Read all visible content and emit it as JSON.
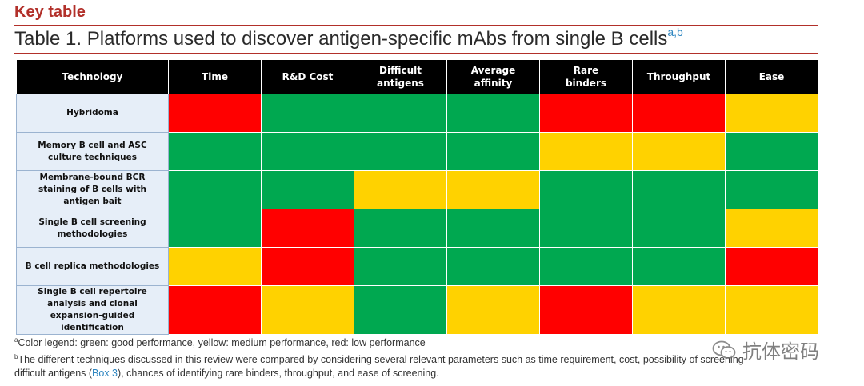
{
  "header": {
    "key_label": "Key table",
    "title": "Table 1. Platforms used to discover antigen-specific mAbs from single B cells",
    "title_superscript": "a,b"
  },
  "table": {
    "columns": [
      "Technology",
      "Time",
      "R&D Cost",
      "Difficult antigens",
      "Average affinity",
      "Rare binders",
      "Throughput",
      "Ease"
    ],
    "rows": [
      {
        "technology": "Hybridoma",
        "ratings": [
          "red",
          "green",
          "green",
          "green",
          "red",
          "red",
          "yellow"
        ]
      },
      {
        "technology": "Memory B cell and ASC culture techniques",
        "ratings": [
          "green",
          "green",
          "green",
          "green",
          "yellow",
          "yellow",
          "green"
        ]
      },
      {
        "technology": "Membrane-bound BCR staining of B cells with antigen bait",
        "ratings": [
          "green",
          "green",
          "yellow",
          "yellow",
          "green",
          "green",
          "green"
        ]
      },
      {
        "technology": "Single B cell screening methodologies",
        "ratings": [
          "green",
          "red",
          "green",
          "green",
          "green",
          "green",
          "yellow"
        ]
      },
      {
        "technology": "B cell replica methodologies",
        "ratings": [
          "yellow",
          "red",
          "green",
          "green",
          "green",
          "green",
          "red"
        ]
      },
      {
        "technology": "Single B cell repertoire analysis and clonal expansion-guided identification",
        "ratings": [
          "red",
          "yellow",
          "green",
          "yellow",
          "red",
          "yellow",
          "yellow"
        ]
      }
    ],
    "colors": {
      "green": "#00a850",
      "yellow": "#ffd200",
      "red": "#ff0000",
      "header_bg": "#000000",
      "rowhead_bg": "#e6eef8"
    }
  },
  "footnotes": {
    "a_mark": "a",
    "a_text": "Color legend: green: good performance, yellow: medium performance, red: low performance",
    "b_mark": "b",
    "b_text_1": "The different techniques discussed in this review were compared by considering several relevant parameters such as time requirement, cost, possibility of screening",
    "b_text_2": "difficult antigens (",
    "b_link": "Box 3",
    "b_text_3": "), chances of identifying rare binders, throughput, and ease of screening."
  },
  "watermark": {
    "text": "抗体密码",
    "icon": "wechat-icon"
  }
}
